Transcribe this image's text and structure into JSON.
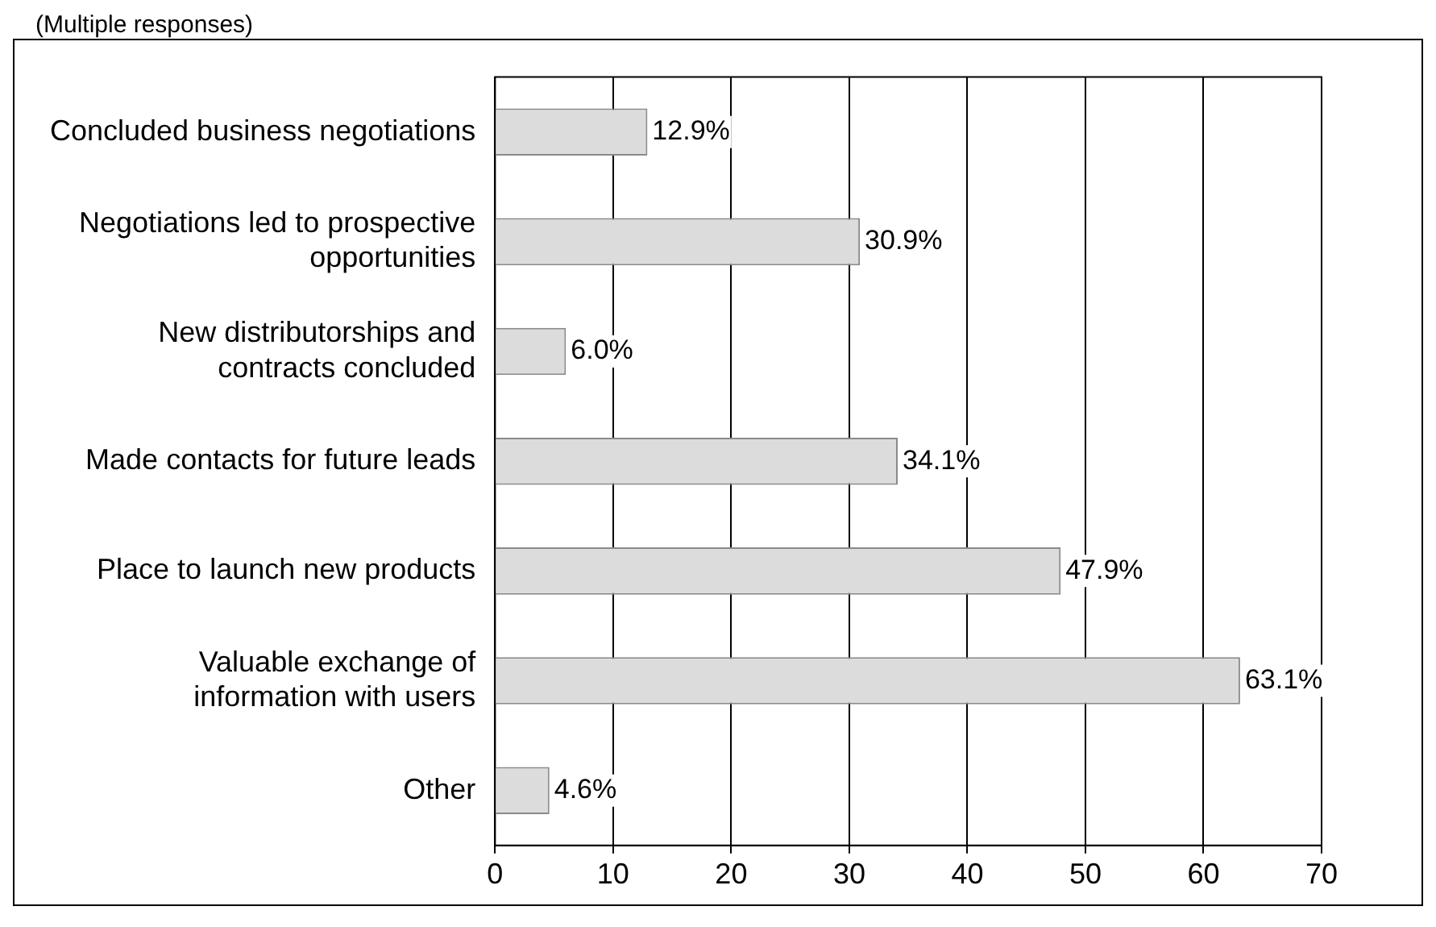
{
  "chart_data": {
    "type": "bar",
    "orientation": "horizontal",
    "annotations": [
      "(Multiple responses)"
    ],
    "categories": [
      "Concluded business negotiations",
      "Negotiations led to prospective opportunities",
      "New distributorships and contracts concluded",
      "Made contacts for future leads",
      "Place to launch new products",
      "Valuable exchange of information with users",
      "Other"
    ],
    "values": [
      12.9,
      30.9,
      6.0,
      34.1,
      47.9,
      63.1,
      4.6
    ],
    "value_labels": [
      "12.9%",
      "30.9%",
      "6.0%",
      "34.1%",
      "47.9%",
      "63.1%",
      "4.6%"
    ],
    "color": "#dcdcdc",
    "xlim": [
      0,
      70
    ],
    "xticks": [
      0,
      10,
      20,
      30,
      40,
      50,
      60,
      70
    ],
    "grid": "x",
    "legend": false
  }
}
